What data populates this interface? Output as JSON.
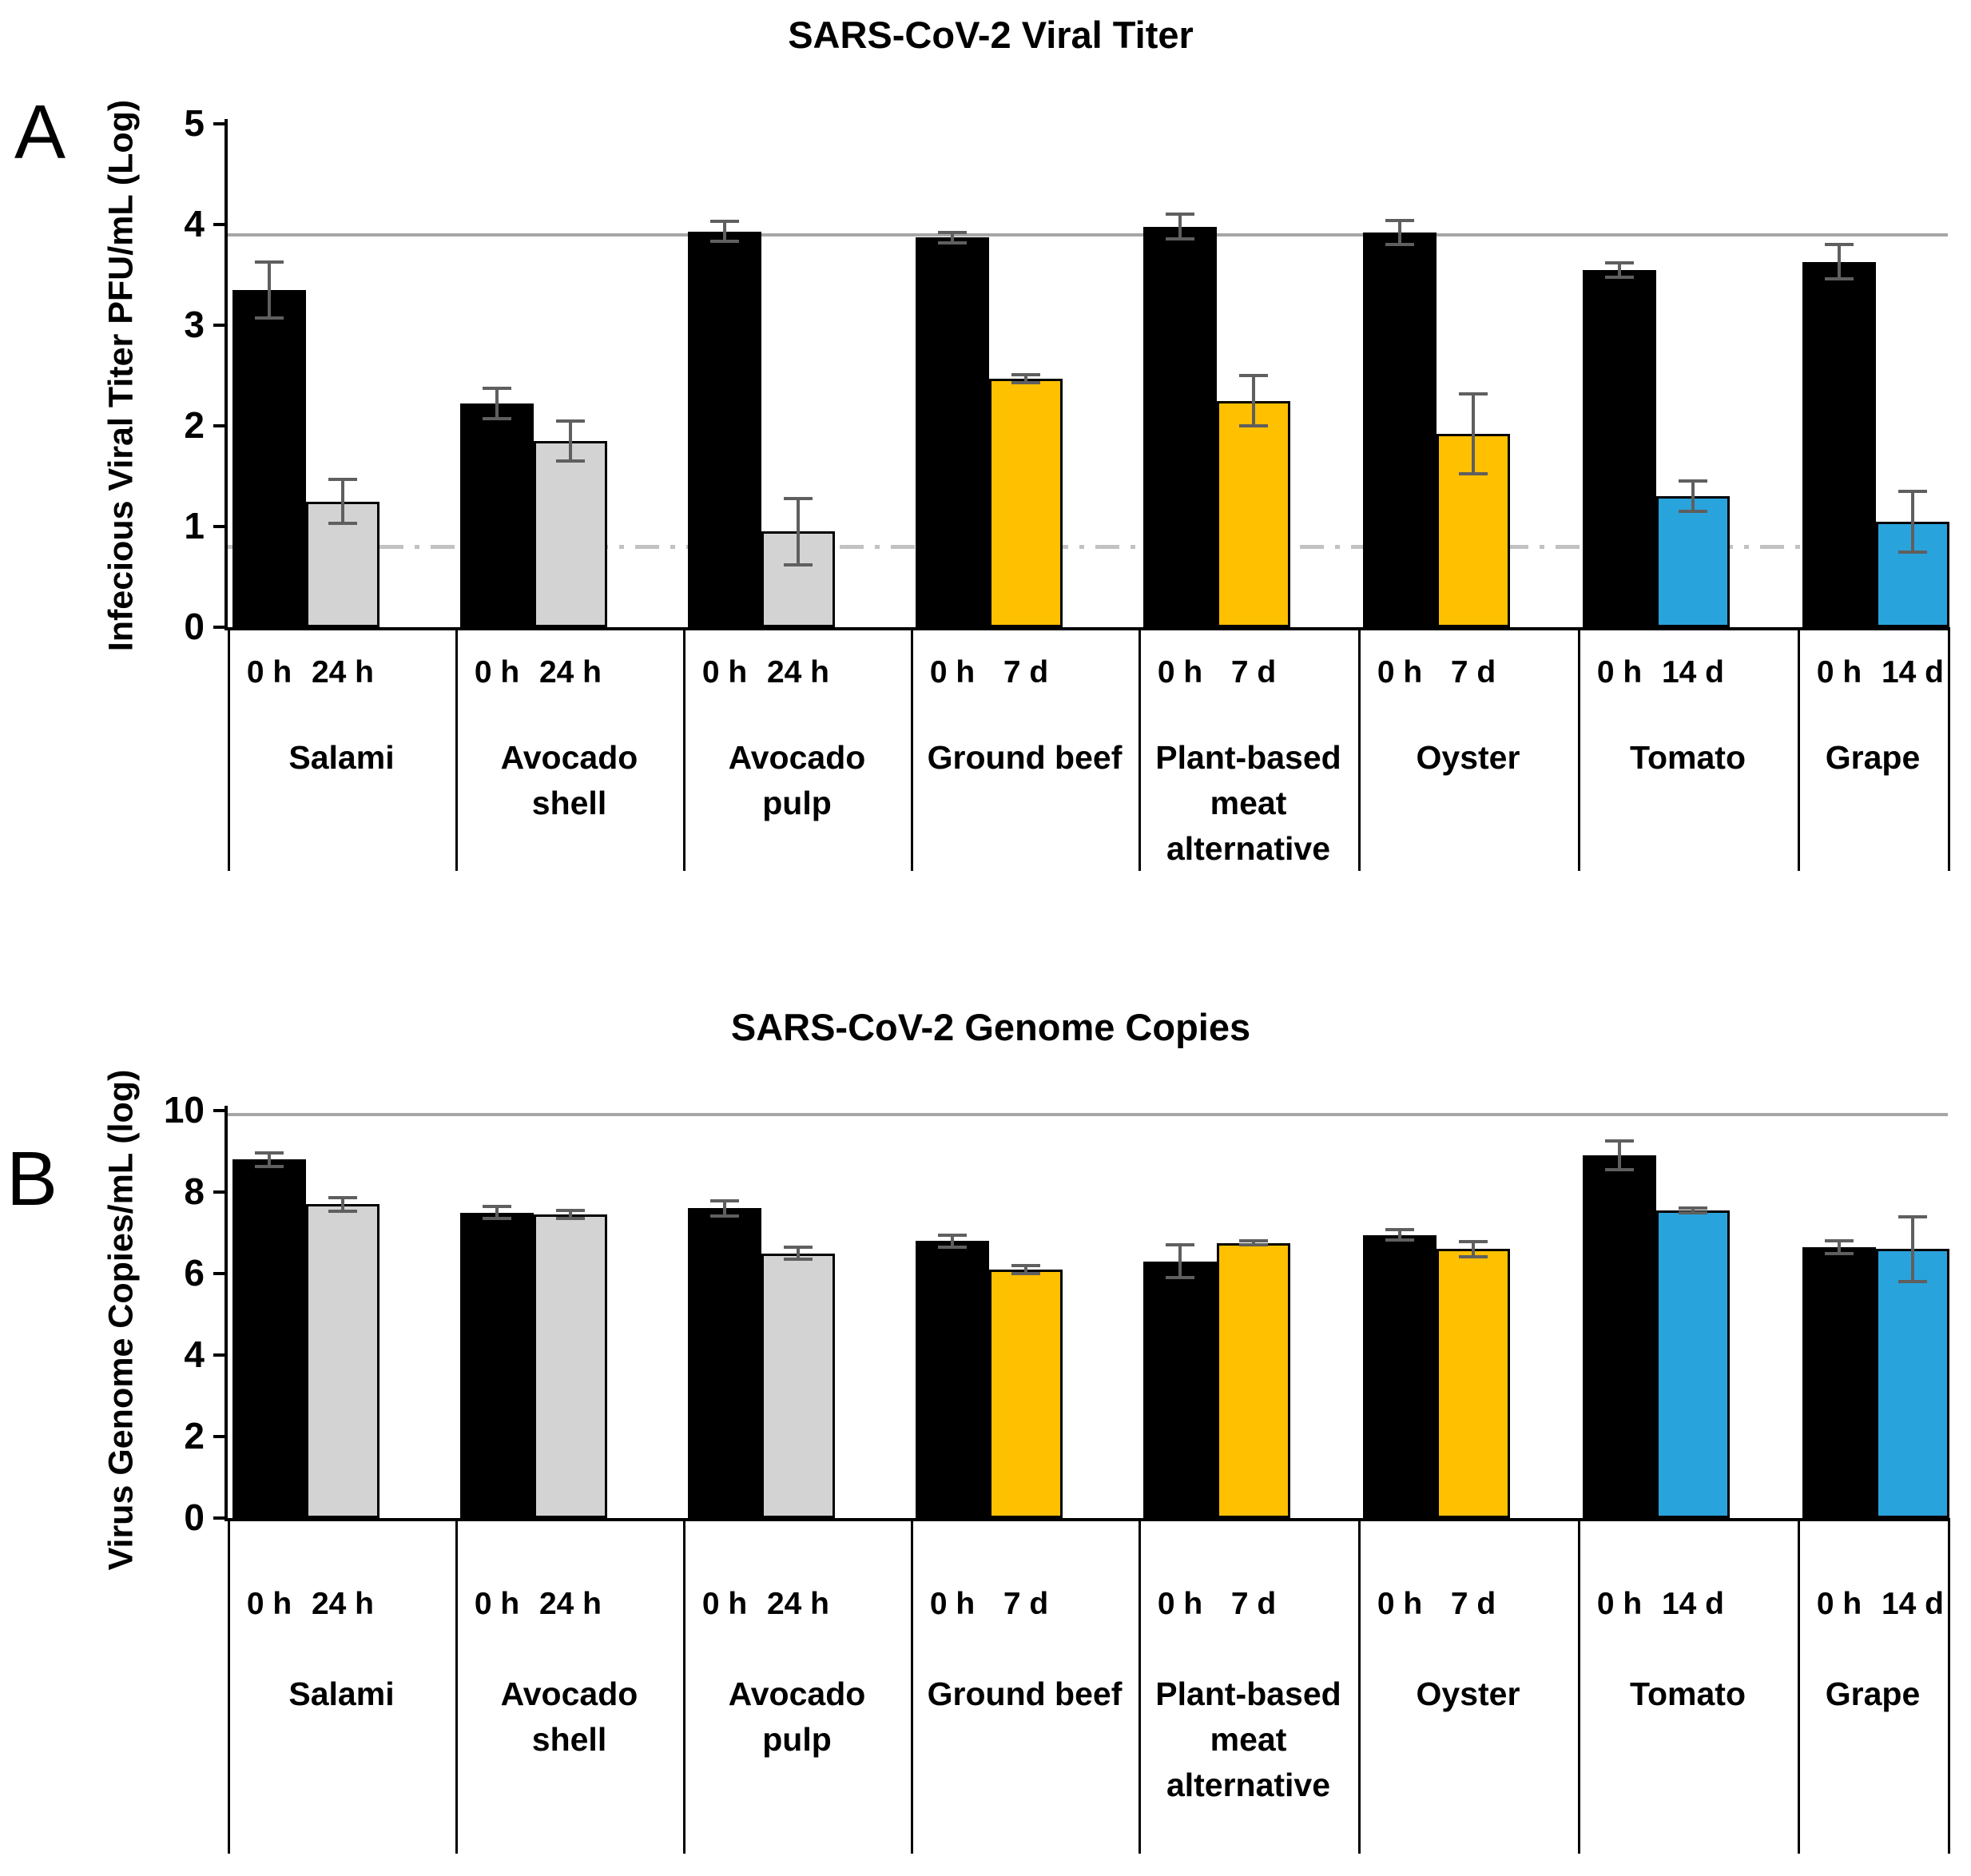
{
  "colors": {
    "bar_0h": "#000000",
    "bar_24h": "#d3d3d3",
    "bar_7d": "#ffc000",
    "bar_14d": "#29a3dc",
    "error_bar": "#5f5f5f",
    "reference_line": "#a6a6a6",
    "detection_limit_line": "#c2c2c2"
  },
  "chart_data": [
    {
      "id": "titer",
      "panel_letter": "A",
      "type": "bar",
      "title": "SARS-CoV-2 Viral Titer",
      "ylabel": "Infecious Viral Titer PFU/mL (Log)",
      "xlabel": "",
      "ylim": [
        0,
        5
      ],
      "yticks": [
        0,
        1,
        2,
        3,
        4,
        5
      ],
      "grid": false,
      "legend": "none",
      "reference_lines": [
        {
          "value": 3.9,
          "style": "solid"
        },
        {
          "value": 0.8,
          "style": "dash-dot"
        }
      ],
      "groups": [
        {
          "name": "Salami",
          "name_lines": [
            "Salami"
          ],
          "bars": [
            {
              "time": "0 h",
              "value": 3.35,
              "error": 0.28,
              "color_key": "bar_0h"
            },
            {
              "time": "24 h",
              "value": 1.25,
              "error": 0.22,
              "color_key": "bar_24h"
            }
          ]
        },
        {
          "name": "Avocado shell",
          "name_lines": [
            "Avocado",
            "shell"
          ],
          "bars": [
            {
              "time": "0 h",
              "value": 2.22,
              "error": 0.15,
              "color_key": "bar_0h"
            },
            {
              "time": "24 h",
              "value": 1.85,
              "error": 0.2,
              "color_key": "bar_24h"
            }
          ]
        },
        {
          "name": "Avocado pulp",
          "name_lines": [
            "Avocado",
            "pulp"
          ],
          "bars": [
            {
              "time": "0 h",
              "value": 3.93,
              "error": 0.1,
              "color_key": "bar_0h"
            },
            {
              "time": "24 h",
              "value": 0.95,
              "error": 0.33,
              "color_key": "bar_24h"
            }
          ]
        },
        {
          "name": "Ground beef",
          "name_lines": [
            "Ground beef"
          ],
          "bars": [
            {
              "time": "0 h",
              "value": 3.87,
              "error": 0.05,
              "color_key": "bar_0h"
            },
            {
              "time": "7 d",
              "value": 2.47,
              "error": 0.04,
              "color_key": "bar_7d"
            }
          ]
        },
        {
          "name": "Plant-based meat alternative",
          "name_lines": [
            "Plant-based",
            "meat",
            "alternative"
          ],
          "bars": [
            {
              "time": "0 h",
              "value": 3.98,
              "error": 0.12,
              "color_key": "bar_0h"
            },
            {
              "time": "7 d",
              "value": 2.25,
              "error": 0.25,
              "color_key": "bar_7d"
            }
          ]
        },
        {
          "name": "Oyster",
          "name_lines": [
            "Oyster"
          ],
          "bars": [
            {
              "time": "0 h",
              "value": 3.92,
              "error": 0.12,
              "color_key": "bar_0h"
            },
            {
              "time": "7 d",
              "value": 1.92,
              "error": 0.4,
              "color_key": "bar_7d"
            }
          ]
        },
        {
          "name": "Tomato",
          "name_lines": [
            "Tomato"
          ],
          "bars": [
            {
              "time": "0 h",
              "value": 3.55,
              "error": 0.07,
              "color_key": "bar_0h"
            },
            {
              "time": "14 d",
              "value": 1.3,
              "error": 0.15,
              "color_key": "bar_14d"
            }
          ]
        },
        {
          "name": "Grape",
          "name_lines": [
            "Grape"
          ],
          "bars": [
            {
              "time": "0 h",
              "value": 3.63,
              "error": 0.17,
              "color_key": "bar_0h"
            },
            {
              "time": "14 d",
              "value": 1.05,
              "error": 0.3,
              "color_key": "bar_14d"
            }
          ]
        }
      ]
    },
    {
      "id": "genome",
      "panel_letter": "B",
      "type": "bar",
      "title": "SARS-CoV-2 Genome Copies",
      "ylabel": "Virus Genome Copies/mL (log)",
      "xlabel": "",
      "ylim": [
        0,
        10
      ],
      "yticks": [
        0,
        2,
        4,
        6,
        8,
        10
      ],
      "grid": false,
      "legend": "none",
      "reference_lines": [
        {
          "value": 9.9,
          "style": "solid"
        }
      ],
      "groups": [
        {
          "name": "Salami",
          "name_lines": [
            "Salami"
          ],
          "bars": [
            {
              "time": "0 h",
              "value": 8.8,
              "error": 0.17,
              "color_key": "bar_0h"
            },
            {
              "time": "24 h",
              "value": 7.7,
              "error": 0.17,
              "color_key": "bar_24h"
            }
          ]
        },
        {
          "name": "Avocado shell",
          "name_lines": [
            "Avocado",
            "shell"
          ],
          "bars": [
            {
              "time": "0 h",
              "value": 7.5,
              "error": 0.15,
              "color_key": "bar_0h"
            },
            {
              "time": "24 h",
              "value": 7.45,
              "error": 0.1,
              "color_key": "bar_24h"
            }
          ]
        },
        {
          "name": "Avocado pulp",
          "name_lines": [
            "Avocado",
            "pulp"
          ],
          "bars": [
            {
              "time": "0 h",
              "value": 7.6,
              "error": 0.18,
              "color_key": "bar_0h"
            },
            {
              "time": "24 h",
              "value": 6.5,
              "error": 0.15,
              "color_key": "bar_24h"
            }
          ]
        },
        {
          "name": "Ground beef",
          "name_lines": [
            "Ground beef"
          ],
          "bars": [
            {
              "time": "0 h",
              "value": 6.8,
              "error": 0.15,
              "color_key": "bar_0h"
            },
            {
              "time": "7 d",
              "value": 6.1,
              "error": 0.1,
              "color_key": "bar_7d"
            }
          ]
        },
        {
          "name": "Plant-based meat alternative",
          "name_lines": [
            "Plant-based",
            "meat",
            "alternative"
          ],
          "bars": [
            {
              "time": "0 h",
              "value": 6.3,
              "error": 0.4,
              "color_key": "bar_0h"
            },
            {
              "time": "7 d",
              "value": 6.75,
              "error": 0.05,
              "color_key": "bar_7d"
            }
          ]
        },
        {
          "name": "Oyster",
          "name_lines": [
            "Oyster"
          ],
          "bars": [
            {
              "time": "0 h",
              "value": 6.95,
              "error": 0.12,
              "color_key": "bar_0h"
            },
            {
              "time": "7 d",
              "value": 6.6,
              "error": 0.18,
              "color_key": "bar_7d"
            }
          ]
        },
        {
          "name": "Tomato",
          "name_lines": [
            "Tomato"
          ],
          "bars": [
            {
              "time": "0 h",
              "value": 8.9,
              "error": 0.35,
              "color_key": "bar_0h"
            },
            {
              "time": "14 d",
              "value": 7.55,
              "error": 0.05,
              "color_key": "bar_14d"
            }
          ]
        },
        {
          "name": "Grape",
          "name_lines": [
            "Grape"
          ],
          "bars": [
            {
              "time": "0 h",
              "value": 6.65,
              "error": 0.15,
              "color_key": "bar_0h"
            },
            {
              "time": "14 d",
              "value": 6.6,
              "error": 0.8,
              "color_key": "bar_14d"
            }
          ]
        }
      ]
    }
  ]
}
